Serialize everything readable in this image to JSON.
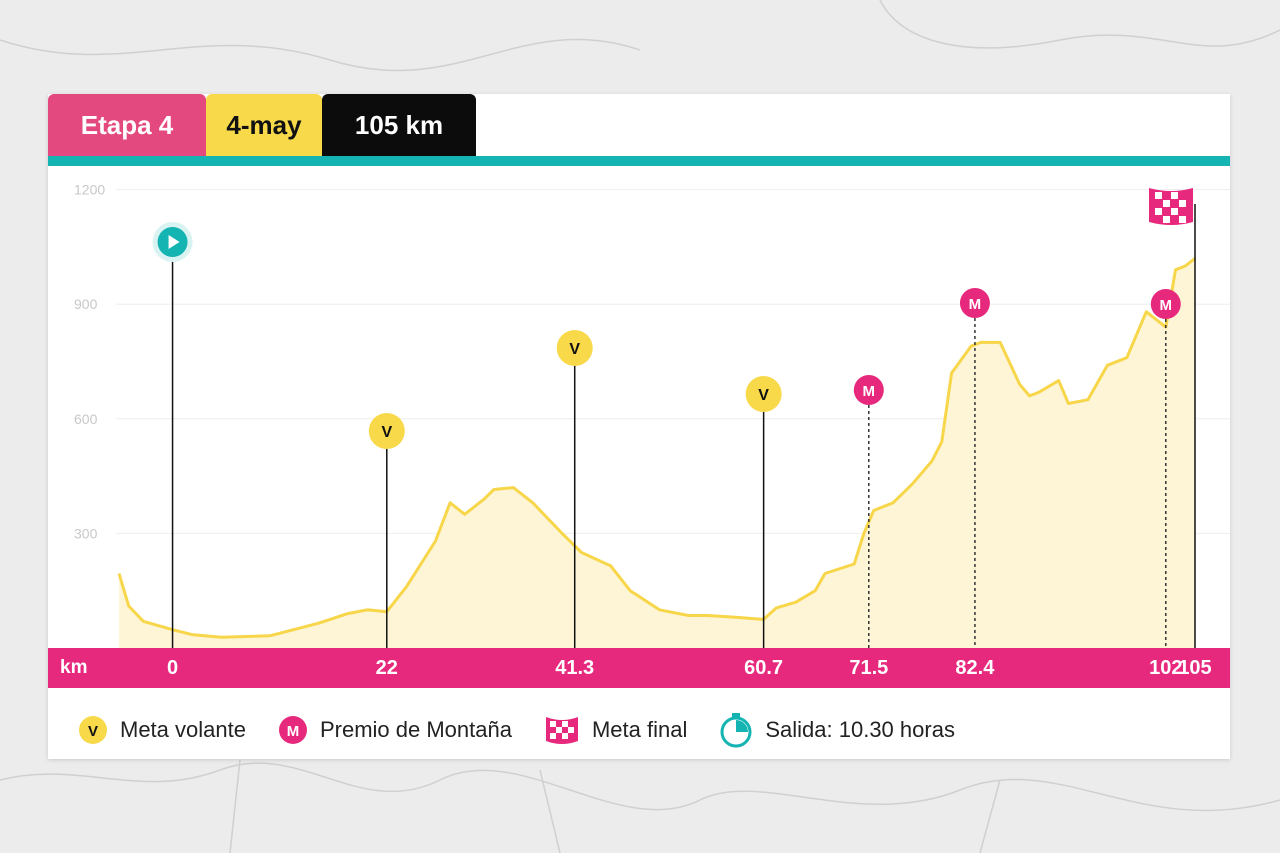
{
  "header": {
    "stage": "Etapa 4",
    "date": "4-may",
    "distance": "105 km"
  },
  "colors": {
    "stage_tab": "#e3497e",
    "date_tab": "#f7d94a",
    "distance_tab": "#0c0c0c",
    "teal_accent": "#14b4b3",
    "km_bar": "#e7297e",
    "profile_line": "#f7d64a",
    "profile_fill": "#fdf5d6",
    "sprint_marker": "#f7d94a",
    "mountain_marker": "#e7297e"
  },
  "chart_data": {
    "type": "area",
    "title": "",
    "xlabel": "km",
    "ylabel": "",
    "xlim": [
      -5.5,
      105
    ],
    "ylim": [
      0,
      1250
    ],
    "y_ticks": [
      300,
      600,
      900,
      1200
    ],
    "x_ticks": [
      {
        "value": 0,
        "label": "0"
      },
      {
        "value": 22,
        "label": "22"
      },
      {
        "value": 41.3,
        "label": "41.3"
      },
      {
        "value": 60.7,
        "label": "60.7"
      },
      {
        "value": 71.5,
        "label": "71.5"
      },
      {
        "value": 82.4,
        "label": "82.4"
      },
      {
        "value": 102,
        "label": "102"
      },
      {
        "value": 105,
        "label": "105"
      }
    ],
    "grid": true,
    "series": [
      {
        "x": [
          -5.5,
          -4.5,
          -3,
          0,
          2,
          5,
          10,
          15,
          18,
          20,
          22,
          24,
          27,
          28.5,
          30,
          32,
          33,
          35,
          37,
          40,
          42,
          45,
          47,
          50,
          53,
          55,
          58,
          60.7,
          62,
          64,
          66,
          67,
          70,
          71,
          72,
          74,
          76,
          78,
          79,
          80,
          82,
          83,
          85,
          87,
          88,
          89,
          91,
          92,
          94,
          96,
          98,
          100,
          102,
          103,
          104,
          105
        ],
        "y": [
          195,
          110,
          70,
          48,
          35,
          28,
          32,
          65,
          90,
          100,
          95,
          160,
          280,
          380,
          350,
          390,
          415,
          420,
          380,
          300,
          250,
          215,
          150,
          100,
          85,
          85,
          80,
          75,
          105,
          120,
          150,
          195,
          220,
          300,
          360,
          380,
          430,
          490,
          540,
          720,
          790,
          800,
          800,
          690,
          660,
          670,
          700,
          640,
          650,
          740,
          760,
          880,
          840,
          990,
          1000,
          1020
        ]
      }
    ],
    "markers": [
      {
        "km": 0,
        "type": "start",
        "icon": "play-icon"
      },
      {
        "km": 22,
        "type": "sprint",
        "label": "V"
      },
      {
        "km": 41.3,
        "type": "sprint",
        "label": "V"
      },
      {
        "km": 60.7,
        "type": "sprint",
        "label": "V"
      },
      {
        "km": 71.5,
        "type": "mountain",
        "label": "M"
      },
      {
        "km": 82.4,
        "type": "mountain",
        "label": "M"
      },
      {
        "km": 102,
        "type": "mountain",
        "label": "M"
      },
      {
        "km": 105,
        "type": "finish",
        "icon": "checkered-flag-icon"
      }
    ]
  },
  "legend": {
    "sprint_badge": "V",
    "sprint_label": "Meta volante",
    "mountain_badge": "M",
    "mountain_label": "Premio de Montaña",
    "finish_label": "Meta final",
    "start_time_label": "Salida: 10.30 horas",
    "icons": [
      "checkered-flag-icon",
      "stopwatch-icon"
    ]
  }
}
